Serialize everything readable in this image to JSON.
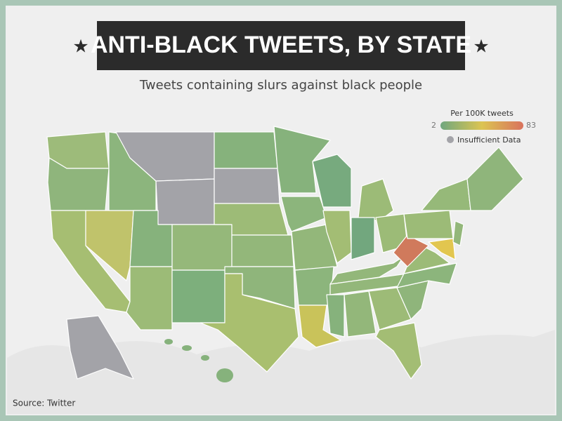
{
  "title": "ANTI-BLACK TWEETS, BY STATE",
  "subtitle": "Tweets containing slurs against black people",
  "legend": {
    "title": "Per 100K tweets",
    "min": 2,
    "max": 83,
    "no_data_label": "Insufficient Data"
  },
  "source": "Source: Twitter"
}
